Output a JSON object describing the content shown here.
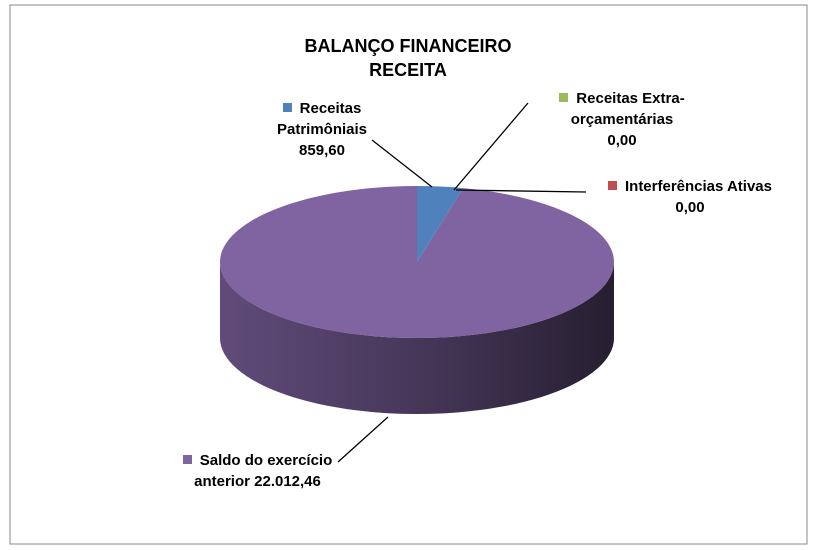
{
  "chart_data": {
    "type": "pie3d",
    "title": "BALANÇO FINANCEIRO RECEITA",
    "categories": [
      "Receitas Patrimôniais",
      "Receitas Extra-orçamentárias",
      "Interferências Ativas",
      "Saldo do exercício anterior"
    ],
    "values": [
      859.6,
      0,
      0,
      22012.46
    ],
    "value_labels": [
      "859,60",
      "0,00",
      "0,00",
      "22.012,46"
    ],
    "colors": [
      "#4f81bd",
      "#9bbb59",
      "#c0504d",
      "#8064a2"
    ]
  }
}
